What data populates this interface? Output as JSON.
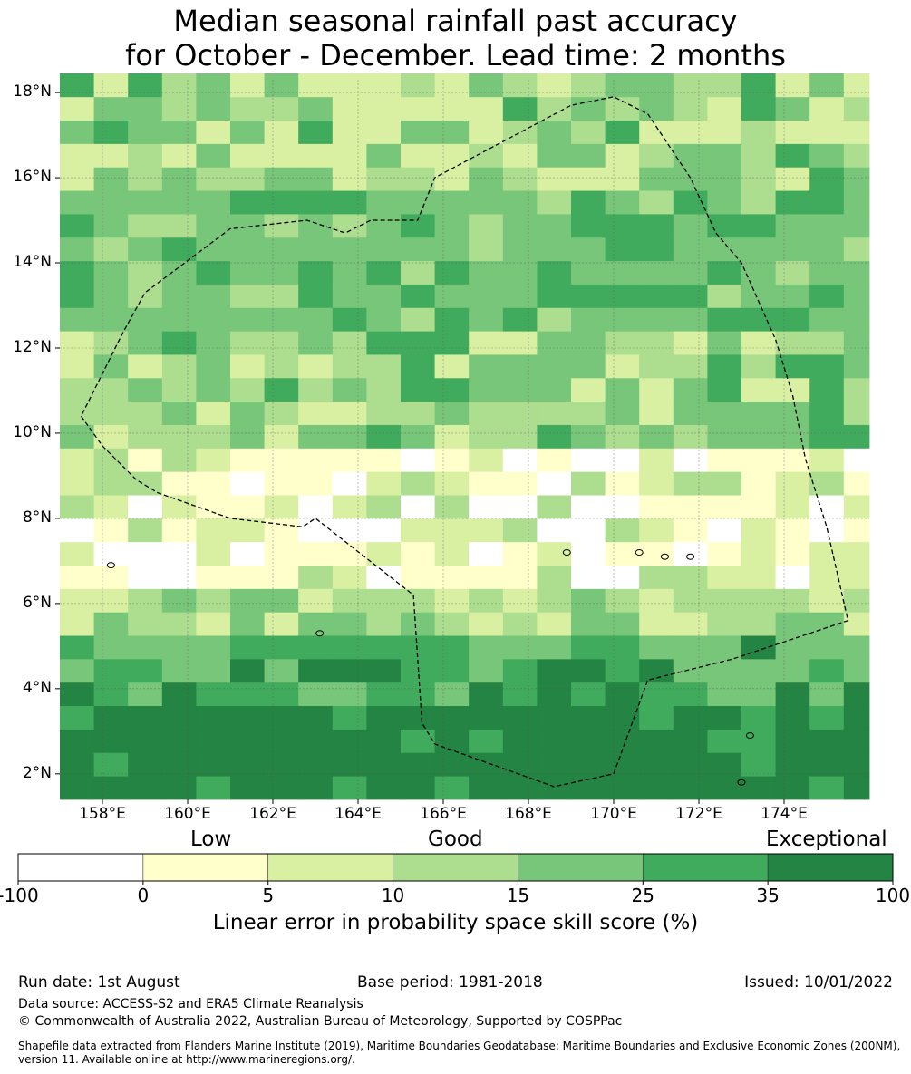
{
  "title_line1": "Median seasonal rainfall past accuracy",
  "title_line2": "for October - December. Lead time: 2 months",
  "map": {
    "lon_min": 157.0,
    "lon_max": 176.0,
    "lat_min": 1.4,
    "lat_max": 18.3,
    "cell_lon": 0.8,
    "cell_lat": 0.55,
    "x_ticks": [
      {
        "v": 158,
        "t": "158°E"
      },
      {
        "v": 160,
        "t": "160°E"
      },
      {
        "v": 162,
        "t": "162°E"
      },
      {
        "v": 164,
        "t": "164°E"
      },
      {
        "v": 166,
        "t": "166°E"
      },
      {
        "v": 168,
        "t": "168°E"
      },
      {
        "v": 170,
        "t": "170°E"
      },
      {
        "v": 172,
        "t": "172°E"
      },
      {
        "v": 174,
        "t": "174°E"
      }
    ],
    "y_ticks": [
      {
        "v": 18,
        "t": "18°N"
      },
      {
        "v": 16,
        "t": "16°N"
      },
      {
        "v": 14,
        "t": "14°N"
      },
      {
        "v": 12,
        "t": "12°N"
      },
      {
        "v": 10,
        "t": "10°N"
      },
      {
        "v": 8,
        "t": "8°N"
      },
      {
        "v": 6,
        "t": "6°N"
      },
      {
        "v": 4,
        "t": "4°N"
      },
      {
        "v": 2,
        "t": "2°N"
      }
    ],
    "grid_lines": true,
    "eez_boundary": [
      [
        157.5,
        10.4
      ],
      [
        158.0,
        9.7
      ],
      [
        158.8,
        8.9
      ],
      [
        159.3,
        8.6
      ],
      [
        161.0,
        8.0
      ],
      [
        162.7,
        7.8
      ],
      [
        163.0,
        8.0
      ],
      [
        165.3,
        6.2
      ],
      [
        165.5,
        3.2
      ],
      [
        165.8,
        2.7
      ],
      [
        168.6,
        1.7
      ],
      [
        170.0,
        2.0
      ],
      [
        170.8,
        4.2
      ],
      [
        172.8,
        4.7
      ],
      [
        175.5,
        5.6
      ],
      [
        175.0,
        7.8
      ],
      [
        174.5,
        9.4
      ],
      [
        174.2,
        10.9
      ],
      [
        173.8,
        12.2
      ],
      [
        173.0,
        14.0
      ],
      [
        172.4,
        14.7
      ],
      [
        171.8,
        16.0
      ],
      [
        170.8,
        17.5
      ],
      [
        170.0,
        17.9
      ],
      [
        169.0,
        17.7
      ],
      [
        165.8,
        16.0
      ],
      [
        165.4,
        15.0
      ],
      [
        164.3,
        15.0
      ],
      [
        163.7,
        14.7
      ],
      [
        162.8,
        15.0
      ],
      [
        161.0,
        14.8
      ],
      [
        159.0,
        13.3
      ],
      [
        158.5,
        12.4
      ],
      [
        157.5,
        10.4
      ]
    ],
    "islands": [
      [
        158.2,
        6.9
      ],
      [
        163.1,
        5.3
      ],
      [
        168.9,
        7.2
      ],
      [
        171.2,
        7.1
      ],
      [
        171.8,
        7.1
      ],
      [
        173.2,
        2.9
      ],
      [
        173.0,
        1.8
      ],
      [
        170.6,
        7.2
      ]
    ]
  },
  "colorbar": {
    "categories": [
      "Low",
      "Good",
      "Exceptional"
    ],
    "colors": [
      "#ffffff",
      "#ffffcc",
      "#d9f0a3",
      "#addd8e",
      "#78c679",
      "#41ab5d",
      "#238443"
    ],
    "ticks": [
      "-100",
      "0",
      "5",
      "10",
      "15",
      "25",
      "35",
      "100"
    ],
    "label": "Linear error in probability space skill score (%)"
  },
  "footer": {
    "run_date": "Run date: 1st August",
    "base_period": "Base period: 1981-2018",
    "issued": "Issued: 10/01/2022",
    "data_source": "Data source: ACCESS-S2 and ERA5 Climate Reanalysis",
    "copyright": "© Commonwealth of Australia 2022, Australian Bureau of Meteorology, Supported by COSPPac",
    "shapefile_line1": "Shapefile data extracted from Flanders Marine Institute (2019), Maritime Boundaries Geodatabase: Maritime Boundaries and Exclusive Economic Zones (200NM),",
    "shapefile_line2": "version 11. Available online at http://www.marineregions.org/."
  }
}
